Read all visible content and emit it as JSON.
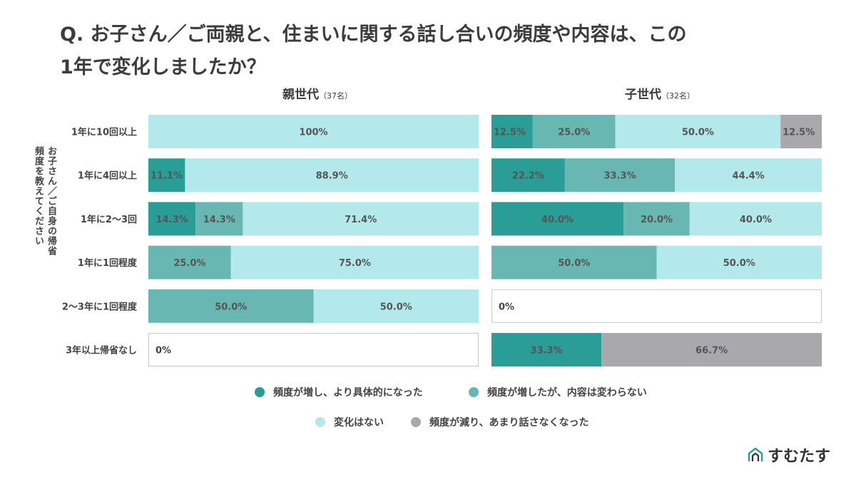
{
  "title_line1": "Q. お子さん／ご両親と、住まいに関する話し合いの頻度や内容は、この",
  "title_line2": "1年で変化しましたか？",
  "y_axis_title_line1": "お子さん／ご自身の帰省",
  "y_axis_title_line2": "頻度を教えてください",
  "panels": [
    {
      "name": "親世代",
      "count": "（37名）"
    },
    {
      "name": "子世代",
      "count": "（32名）"
    }
  ],
  "colors": {
    "detailed": "#2a9d97",
    "increased": "#68b7b2",
    "no_change": "#b3e9ea",
    "decreased": "#a9a9ad"
  },
  "chart_data": [
    {
      "type": "bar",
      "orientation": "horizontal-stacked-100",
      "title": "親世代（37名）",
      "categories": [
        "1年に10回以上",
        "1年に4回以上",
        "1年に2〜3回",
        "1年に1回程度",
        "2〜3年に1回程度",
        "3年以上帰省なし"
      ],
      "series": [
        {
          "name": "頻度が増し、より具体的になった",
          "values": [
            0,
            11.1,
            14.3,
            0,
            0,
            0
          ]
        },
        {
          "name": "頻度が増したが、内容は変わらない",
          "values": [
            0,
            0,
            14.3,
            25.0,
            50.0,
            0
          ]
        },
        {
          "name": "変化はない",
          "values": [
            100,
            88.9,
            71.4,
            75.0,
            50.0,
            0
          ]
        },
        {
          "name": "頻度が減り、あまり話さなくなった",
          "values": [
            0,
            0,
            0,
            0,
            0,
            0
          ]
        }
      ],
      "labels": [
        [
          "",
          "",
          "100%",
          ""
        ],
        [
          "11.1%",
          "",
          "88.9%",
          ""
        ],
        [
          "14.3%",
          "14.3%",
          "71.4%",
          ""
        ],
        [
          "",
          "25.0%",
          "75.0%",
          ""
        ],
        [
          "",
          "50.0%",
          "50.0%",
          ""
        ],
        [
          "",
          "",
          "",
          ""
        ]
      ],
      "zero_labels": [
        "",
        "",
        "",
        "",
        "",
        "0%"
      ],
      "xlim": [
        0,
        100
      ]
    },
    {
      "type": "bar",
      "orientation": "horizontal-stacked-100",
      "title": "子世代（32名）",
      "categories": [
        "1年に10回以上",
        "1年に4回以上",
        "1年に2〜3回",
        "1年に1回程度",
        "2〜3年に1回程度",
        "3年以上帰省なし"
      ],
      "series": [
        {
          "name": "頻度が増し、より具体的になった",
          "values": [
            12.5,
            22.2,
            40.0,
            0,
            0,
            33.3
          ]
        },
        {
          "name": "頻度が増したが、内容は変わらない",
          "values": [
            25.0,
            33.3,
            20.0,
            50.0,
            0,
            0
          ]
        },
        {
          "name": "変化はない",
          "values": [
            50.0,
            44.4,
            40.0,
            50.0,
            0,
            0
          ]
        },
        {
          "name": "頻度が減り、あまり話さなくなった",
          "values": [
            12.5,
            0,
            0,
            0,
            0,
            66.7
          ]
        }
      ],
      "labels": [
        [
          "12.5%",
          "25.0%",
          "50.0%",
          "12.5%"
        ],
        [
          "22.2%",
          "33.3%",
          "44.4%",
          ""
        ],
        [
          "40.0%",
          "20.0%",
          "40.0%",
          ""
        ],
        [
          "",
          "50.0%",
          "50.0%",
          ""
        ],
        [
          "",
          "",
          "",
          ""
        ],
        [
          "33.3%",
          "",
          "",
          "66.7%"
        ]
      ],
      "zero_labels": [
        "",
        "",
        "",
        "",
        "0%",
        ""
      ],
      "xlim": [
        0,
        100
      ]
    }
  ],
  "legend": [
    {
      "label": "頻度が増し、より具体的になった",
      "color": "#2a9d97"
    },
    {
      "label": "頻度が増したが、内容は変わらない",
      "color": "#68b7b2"
    },
    {
      "label": "変化はない",
      "color": "#b3e9ea"
    },
    {
      "label": "頻度が減り、あまり話さなくなった",
      "color": "#a9a9ad"
    }
  ],
  "brand": "すむたす"
}
